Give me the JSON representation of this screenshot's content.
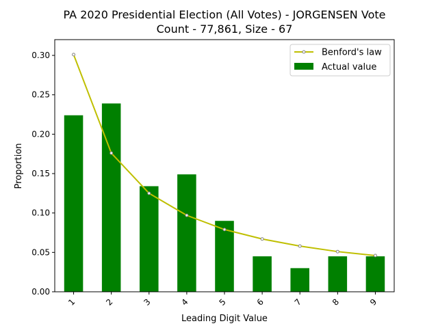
{
  "chart_data": {
    "type": "bar",
    "title_line1": "PA 2020 Presidential Election (All Votes) - JORGENSEN Vote",
    "title_line2": "Count - 77,861, Size - 67",
    "xlabel": "Leading Digit Value",
    "ylabel": "Proportion",
    "categories": [
      "1",
      "2",
      "3",
      "4",
      "5",
      "6",
      "7",
      "8",
      "9"
    ],
    "ylim": [
      0,
      0.32
    ],
    "yticks": [
      "0.00",
      "0.05",
      "0.10",
      "0.15",
      "0.20",
      "0.25",
      "0.30"
    ],
    "ytick_values": [
      0.0,
      0.05,
      0.1,
      0.15,
      0.2,
      0.25,
      0.3
    ],
    "grid": false,
    "legend_position": "top-right",
    "series": [
      {
        "name": "Actual value",
        "type": "bar",
        "color": "#008000",
        "values": [
          0.224,
          0.239,
          0.134,
          0.149,
          0.09,
          0.045,
          0.03,
          0.045,
          0.045
        ]
      },
      {
        "name": "Benford's law",
        "type": "line",
        "color": "#bfbf00",
        "marker_edge": "#808080",
        "values": [
          0.301,
          0.176,
          0.125,
          0.097,
          0.079,
          0.067,
          0.058,
          0.051,
          0.046
        ]
      }
    ]
  }
}
